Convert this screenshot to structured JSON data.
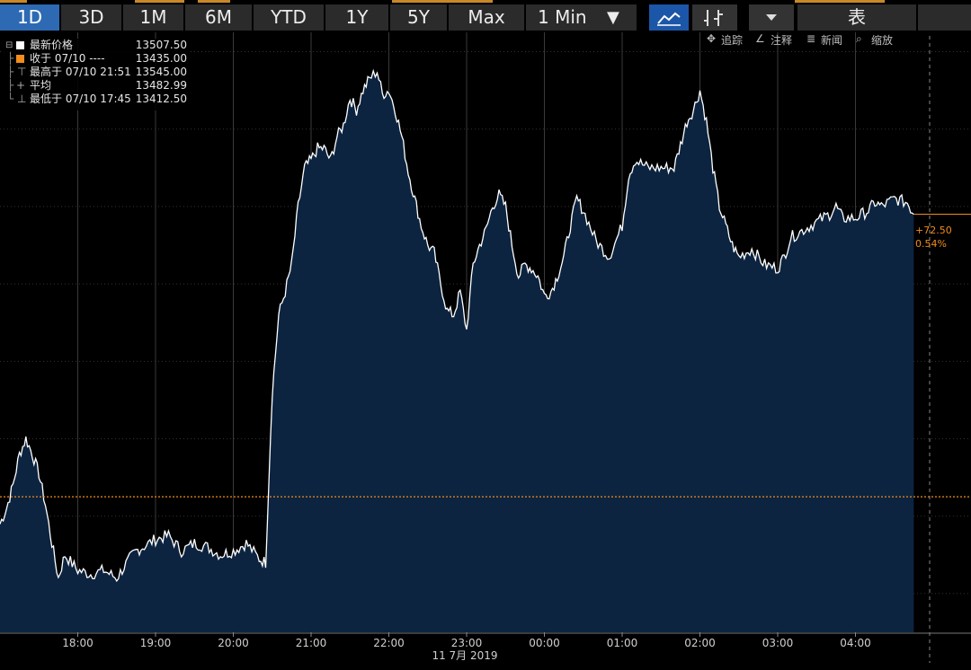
{
  "toolbar": {
    "ranges": [
      "1D",
      "3D",
      "1M",
      "6M",
      "YTD",
      "1Y",
      "5Y",
      "Max"
    ],
    "active_range": "1D",
    "interval": "1 Min",
    "dropdown_glyph": "▼",
    "icons": [
      "line-chart-icon",
      "candlestick-icon",
      "dropdown-icon"
    ],
    "table_label": "表"
  },
  "subtoolbar": {
    "track": "追踪",
    "annotate": "注释",
    "news": "新闻",
    "zoom": "缩放"
  },
  "legend": {
    "last_price": {
      "label": "最新价格",
      "value": "13507.50",
      "color": "#ffffff"
    },
    "close": {
      "label": "收于 07/10 ----",
      "value": "13435.00",
      "color": "#f28c1c"
    },
    "high": {
      "label": "最高于 07/10 21:51",
      "value": "13545.00"
    },
    "average": {
      "label": "平均",
      "value": "13482.99"
    },
    "low": {
      "label": "最低于 07/10 17:45",
      "value": "13412.50"
    }
  },
  "change_tag": {
    "points": "+72.50",
    "percent": "0.54%",
    "color": "#f28c1c"
  },
  "colors": {
    "background": "#000000",
    "fill": "#0c2440",
    "line": "#ffffff",
    "prev_close": "#f28c1c",
    "active_button": "#2d6ab3"
  },
  "chart_data": {
    "type": "area",
    "xlabel": "",
    "ylabel": "",
    "date_label": "11 7月 2019",
    "time_ticks": [
      "18:00",
      "19:00",
      "20:00",
      "21:00",
      "22:00",
      "23:00",
      "00:00",
      "01:00",
      "02:00",
      "03:00",
      "04:00"
    ],
    "prev_close": 13435.0,
    "ylim": [
      13400,
      13555
    ],
    "grid": true,
    "series": [
      {
        "times": [
          "17:00",
          "17:05",
          "17:10",
          "17:15",
          "17:20",
          "17:25",
          "17:30",
          "17:35",
          "17:40",
          "17:45",
          "17:50",
          "18:00",
          "18:10",
          "18:20",
          "18:30",
          "18:40",
          "18:45",
          "18:50",
          "19:00",
          "19:10",
          "19:20",
          "19:30",
          "19:40",
          "19:50",
          "20:00",
          "20:10",
          "20:20",
          "20:25",
          "20:30",
          "20:35",
          "20:40",
          "20:45",
          "20:50",
          "20:55",
          "21:00",
          "21:05",
          "21:10",
          "21:15",
          "21:20",
          "21:25",
          "21:30",
          "21:35",
          "21:40",
          "21:45",
          "21:51",
          "21:55",
          "22:00",
          "22:05",
          "22:10",
          "22:15",
          "22:20",
          "22:25",
          "22:30",
          "22:35",
          "22:40",
          "22:45",
          "22:50",
          "22:55",
          "23:00",
          "23:05",
          "23:10",
          "23:15",
          "23:20",
          "23:25",
          "23:30",
          "23:35",
          "23:40",
          "23:45",
          "23:50",
          "23:55",
          "00:00",
          "00:05",
          "00:10",
          "00:15",
          "00:20",
          "00:25",
          "00:30",
          "00:40",
          "00:50",
          "01:00",
          "01:05",
          "01:10",
          "01:20",
          "01:30",
          "01:40",
          "01:45",
          "01:50",
          "01:55",
          "02:00",
          "02:05",
          "02:10",
          "02:15",
          "02:20",
          "02:25",
          "02:30",
          "02:40",
          "02:50",
          "03:00",
          "03:05",
          "03:10",
          "03:20",
          "03:30",
          "03:40",
          "03:45",
          "03:50",
          "04:00",
          "04:10",
          "04:15",
          "04:20",
          "04:30",
          "04:40",
          "04:45"
        ],
        "values": [
          13428,
          13432,
          13438,
          13446,
          13450,
          13446,
          13441,
          13433,
          13423,
          13414,
          13420,
          13416,
          13415,
          13416,
          13414,
          13419,
          13421,
          13422,
          13424,
          13425,
          13421,
          13423,
          13422,
          13420,
          13421,
          13423,
          13419,
          13418,
          13462,
          13482,
          13488,
          13495,
          13510,
          13520,
          13522,
          13525,
          13525,
          13522,
          13528,
          13531,
          13538,
          13535,
          13540,
          13543,
          13545,
          13539,
          13540,
          13535,
          13528,
          13519,
          13512,
          13505,
          13500,
          13498,
          13490,
          13483,
          13482,
          13488,
          13478,
          13495,
          13500,
          13504,
          13510,
          13513,
          13510,
          13500,
          13492,
          13495,
          13494,
          13492,
          13487,
          13488,
          13492,
          13497,
          13505,
          13512,
          13509,
          13501,
          13497,
          13505,
          13518,
          13522,
          13520,
          13520,
          13520,
          13526,
          13532,
          13535,
          13540,
          13532,
          13520,
          13510,
          13505,
          13500,
          13497,
          13499,
          13495,
          13494,
          13497,
          13502,
          13504,
          13506,
          13508,
          13510,
          13507,
          13507,
          13509,
          13511,
          13510,
          13512,
          13511,
          13508
        ]
      }
    ]
  }
}
